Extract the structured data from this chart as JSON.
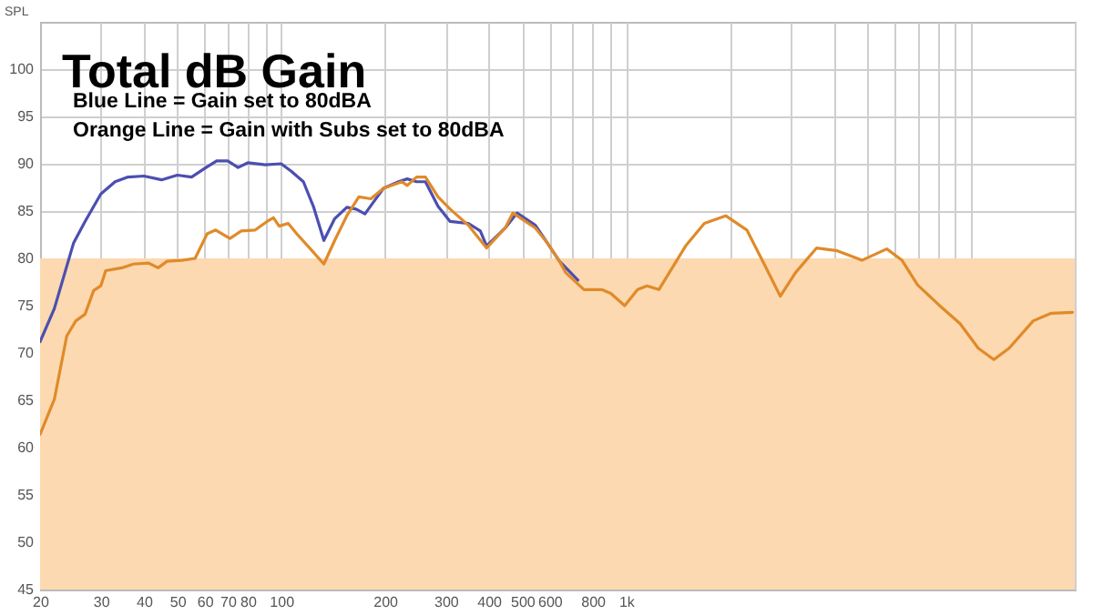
{
  "chart_data": {
    "type": "line",
    "title": "Total dB Gain",
    "annotations": [
      "Blue Line = Gain set to 80dBA",
      "Orange Line = Gain with Subs set to 80dBA"
    ],
    "ylabel": "SPL",
    "log": "x",
    "xlim": [
      20,
      20000
    ],
    "ylim": [
      45,
      105
    ],
    "xticks": [
      20,
      30,
      40,
      50,
      60,
      70,
      80,
      {
        "value": 90,
        "label": null
      },
      100,
      200,
      300,
      400,
      500,
      600,
      {
        "value": 700,
        "label": null
      },
      800,
      {
        "value": 900,
        "label": null
      },
      {
        "value": 1000,
        "label": "1k"
      },
      {
        "value": 2000,
        "label": null
      },
      {
        "value": 3000,
        "label": null
      },
      {
        "value": 4000,
        "label": null
      },
      {
        "value": 5000,
        "label": null
      },
      {
        "value": 6000,
        "label": null
      },
      {
        "value": 7000,
        "label": null
      },
      {
        "value": 8000,
        "label": null
      },
      {
        "value": 9000,
        "label": null
      },
      {
        "value": 10000,
        "label": null
      },
      {
        "value": 20000,
        "label": null
      }
    ],
    "yticks": [
      45,
      50,
      55,
      60,
      65,
      70,
      75,
      80,
      85,
      90,
      95,
      100
    ],
    "grid": true,
    "bands": [
      {
        "axis": "y",
        "from": 45,
        "to": 80,
        "color": "#fcd9b0"
      }
    ],
    "series": [
      {
        "color": "#4b4fb0",
        "x": [
          20,
          22,
          25,
          27,
          30,
          33,
          36,
          40,
          45,
          50,
          55,
          60,
          65,
          70,
          75,
          80,
          90,
          100,
          107,
          116,
          124,
          133,
          143,
          155,
          165,
          175,
          184,
          198,
          219,
          232,
          247,
          262,
          285,
          309,
          349,
          378,
          394,
          446,
          483,
          546,
          592,
          641,
          725
        ],
        "values": [
          71.2,
          74.7,
          81.6,
          83.9,
          86.8,
          88.1,
          88.6,
          88.7,
          88.3,
          88.8,
          88.6,
          89.5,
          90.3,
          90.3,
          89.6,
          90.1,
          89.9,
          90,
          89.2,
          88.1,
          85.5,
          81.9,
          84.2,
          85.4,
          85.2,
          84.7,
          85.8,
          87.4,
          88.1,
          88.4,
          88.1,
          88.1,
          85.5,
          83.9,
          83.7,
          82.9,
          81.3,
          83.2,
          84.8,
          83.5,
          81.6,
          79.7,
          77.7
        ]
      },
      {
        "color": "#e08a2a",
        "x": [
          20,
          22,
          23.9,
          25.4,
          27,
          28.6,
          30,
          31,
          34.5,
          37.3,
          41.3,
          44,
          46.7,
          51.6,
          56.3,
          61,
          64.6,
          71,
          76.6,
          84.1,
          91,
          95,
          98.7,
          104.8,
          111,
          121.6,
          133,
          143,
          155,
          168,
          182,
          198,
          224,
          232,
          247,
          262,
          285,
          309,
          349,
          394,
          446,
          470,
          546,
          592,
          641,
          668,
          755,
          850,
          903,
          991,
          1080,
          1150,
          1245,
          1494,
          1687,
          1945,
          2240,
          2530,
          2800,
          3100,
          3570,
          4100,
          4830,
          5700,
          6310,
          7000,
          8060,
          9300,
          10500,
          11650,
          12900,
          15160,
          17100,
          19700
        ],
        "values": [
          61.4,
          65.1,
          71.8,
          73.4,
          74.1,
          76.6,
          77.1,
          78.7,
          79.0,
          79.4,
          79.5,
          79.0,
          79.7,
          79.8,
          80.0,
          82.6,
          83.0,
          82.1,
          82.9,
          83.0,
          83.9,
          84.3,
          83.4,
          83.7,
          82.6,
          81.0,
          79.4,
          81.9,
          84.5,
          86.5,
          86.3,
          87.4,
          88.1,
          87.7,
          88.6,
          88.6,
          86.5,
          85.2,
          83.5,
          81.1,
          83.2,
          84.8,
          83.2,
          81.6,
          79.7,
          78.5,
          76.7,
          76.7,
          76.3,
          75.0,
          76.7,
          77.1,
          76.7,
          81.4,
          83.7,
          84.5,
          83.0,
          79.2,
          76.0,
          78.5,
          81.1,
          80.8,
          79.8,
          81.0,
          79.8,
          77.2,
          75.1,
          73.1,
          70.5,
          69.3,
          70.5,
          73.4,
          74.2,
          74.3
        ]
      }
    ]
  }
}
